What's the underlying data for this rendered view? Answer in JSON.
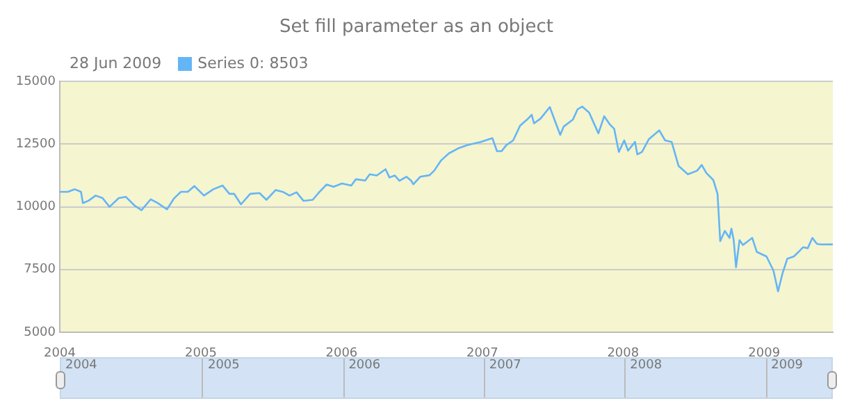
{
  "chart_data": {
    "type": "line",
    "title": "Set fill parameter as an object",
    "annotations": [
      "28 Jun 2009"
    ],
    "x": [
      "2004-01-01",
      "2004-01-22",
      "2004-02-09",
      "2004-02-25",
      "2004-03-01",
      "2004-03-16",
      "2004-04-03",
      "2004-04-21",
      "2004-05-09",
      "2004-06-02",
      "2004-06-20",
      "2004-07-13",
      "2004-07-31",
      "2004-08-24",
      "2004-09-11",
      "2004-10-05",
      "2004-10-23",
      "2004-11-10",
      "2004-11-28",
      "2004-12-15",
      "2005-01-09",
      "2005-02-02",
      "2005-02-26",
      "2005-03-16",
      "2005-03-28",
      "2005-04-15",
      "2005-05-09",
      "2005-06-02",
      "2005-06-20",
      "2005-07-14",
      "2005-08-01",
      "2005-08-19",
      "2005-09-06",
      "2005-09-24",
      "2005-10-18",
      "2005-11-05",
      "2005-11-23",
      "2005-12-11",
      "2006-01-02",
      "2006-01-26",
      "2006-02-07",
      "2006-03-03",
      "2006-03-15",
      "2006-04-02",
      "2006-04-25",
      "2006-05-05",
      "2006-05-19",
      "2006-05-31",
      "2006-06-18",
      "2006-06-30",
      "2006-07-06",
      "2006-07-24",
      "2006-08-17",
      "2006-08-29",
      "2006-09-16",
      "2006-10-06",
      "2006-10-30",
      "2006-11-23",
      "2006-12-28",
      "2007-01-27",
      "2007-02-08",
      "2007-02-20",
      "2007-03-04",
      "2007-03-22",
      "2007-04-09",
      "2007-04-27",
      "2007-05-09",
      "2007-05-15",
      "2007-06-01",
      "2007-06-25",
      "2007-07-07",
      "2007-07-22",
      "2007-07-31",
      "2007-08-24",
      "2007-09-05",
      "2007-09-17",
      "2007-10-05",
      "2007-10-29",
      "2007-11-13",
      "2007-11-27",
      "2007-12-09",
      "2007-12-21",
      "2008-01-04",
      "2008-01-14",
      "2008-02-01",
      "2008-02-07",
      "2008-02-19",
      "2008-03-08",
      "2008-04-04",
      "2008-04-19",
      "2008-05-06",
      "2008-05-24",
      "2008-06-17",
      "2008-07-11",
      "2008-07-23",
      "2008-08-04",
      "2008-08-22",
      "2008-09-02",
      "2008-09-09",
      "2008-09-21",
      "2008-10-03",
      "2008-10-08",
      "2008-10-14",
      "2008-10-20",
      "2008-10-29",
      "2008-11-07",
      "2008-12-01",
      "2008-12-13",
      "2009-01-07",
      "2009-01-25",
      "2009-02-06",
      "2009-02-18",
      "2009-03-02",
      "2009-03-19",
      "2009-03-31",
      "2009-04-12",
      "2009-04-24",
      "2009-05-06",
      "2009-05-18",
      "2009-05-30",
      "2009-06-28"
    ],
    "series": [
      {
        "name": "Series 0: 8503",
        "color": "#64b5f6",
        "values": [
          10600,
          10600,
          10700,
          10600,
          10150,
          10250,
          10450,
          10350,
          10000,
          10350,
          10400,
          10050,
          9870,
          10300,
          10150,
          9900,
          10330,
          10600,
          10600,
          10830,
          10450,
          10700,
          10850,
          10520,
          10520,
          10100,
          10520,
          10550,
          10280,
          10670,
          10600,
          10450,
          10580,
          10240,
          10280,
          10600,
          10890,
          10800,
          10930,
          10850,
          11100,
          11050,
          11300,
          11250,
          11500,
          11170,
          11250,
          11040,
          11200,
          11050,
          10900,
          11200,
          11260,
          11440,
          11850,
          12130,
          12330,
          12460,
          12590,
          12740,
          12220,
          12220,
          12460,
          12650,
          13240,
          13480,
          13670,
          13330,
          13520,
          13980,
          13480,
          12870,
          13200,
          13480,
          13890,
          14000,
          13760,
          12930,
          13610,
          13300,
          13110,
          12190,
          12650,
          12240,
          12590,
          12090,
          12190,
          12700,
          13050,
          12650,
          12590,
          11630,
          11300,
          11440,
          11670,
          11350,
          11070,
          10520,
          8630,
          9040,
          8760,
          9130,
          8670,
          7590,
          8670,
          8480,
          8760,
          8200,
          8020,
          7460,
          6630,
          7370,
          7930,
          8020,
          8200,
          8390,
          8350,
          8760,
          8520,
          8500,
          8503
        ]
      }
    ],
    "xlim": [
      "2004-01-01",
      "2009-06-28"
    ],
    "xticks": [
      {
        "value": "2004-01-01",
        "label": "2004"
      },
      {
        "value": "2005-01-01",
        "label": "2005"
      },
      {
        "value": "2006-01-01",
        "label": "2006"
      },
      {
        "value": "2007-01-01",
        "label": "2007"
      },
      {
        "value": "2008-01-01",
        "label": "2008"
      },
      {
        "value": "2009-01-01",
        "label": "2009"
      }
    ],
    "ylim": [
      5000,
      15000
    ],
    "yticks": [
      5000,
      7500,
      10000,
      12500,
      15000
    ],
    "grid": "y",
    "legend": "top left",
    "marker": "none",
    "line_style": "solid"
  }
}
